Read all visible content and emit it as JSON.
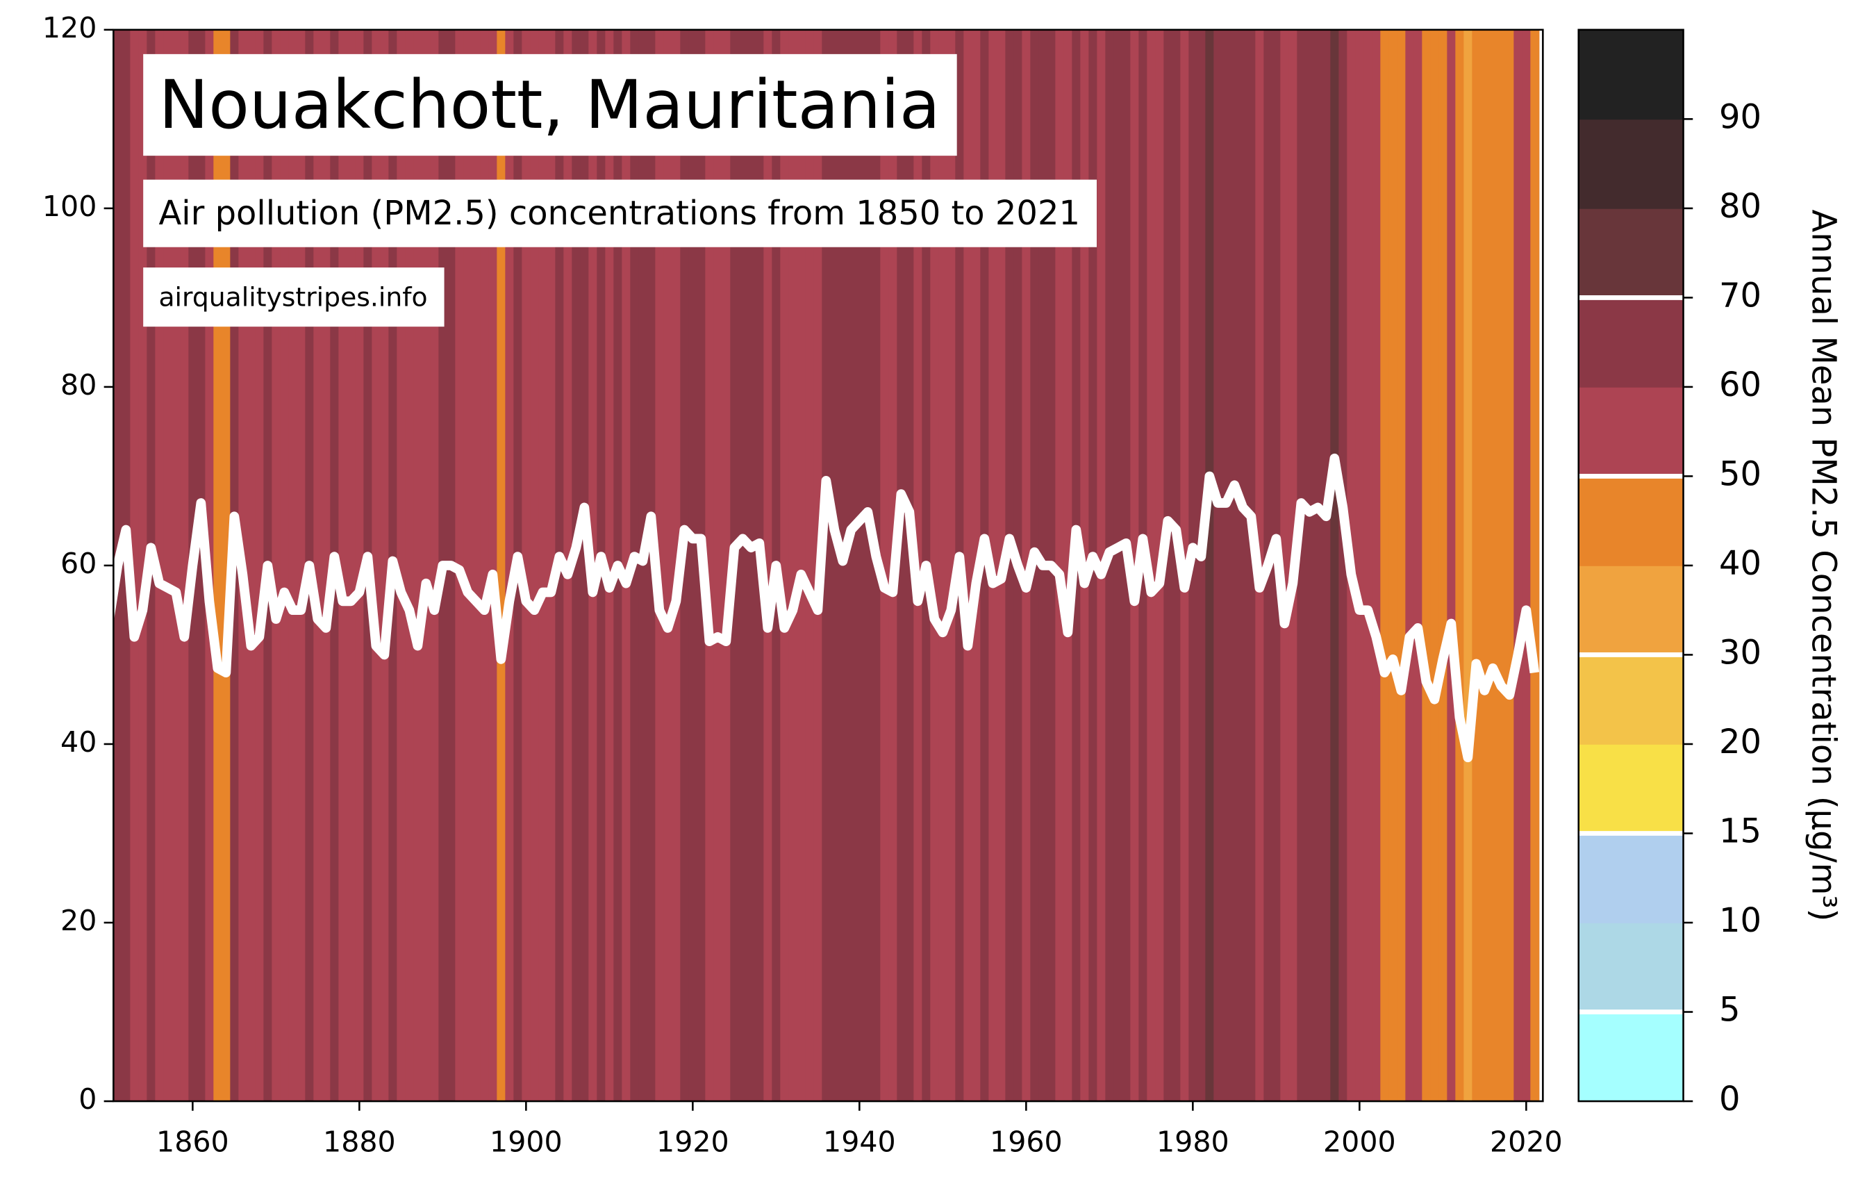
{
  "chart_data": {
    "type": "line",
    "title": "Nouakchott, Mauritania",
    "subtitle": "Air pollution (PM2.5) concentrations from 1850 to 2021",
    "source": "airqualitystripes.info",
    "x": [
      1850,
      1851,
      1852,
      1853,
      1854,
      1855,
      1856,
      1857,
      1858,
      1859,
      1860,
      1861,
      1862,
      1863,
      1864,
      1865,
      1866,
      1867,
      1868,
      1869,
      1870,
      1871,
      1872,
      1873,
      1874,
      1875,
      1876,
      1877,
      1878,
      1879,
      1880,
      1881,
      1882,
      1883,
      1884,
      1885,
      1886,
      1887,
      1888,
      1889,
      1890,
      1891,
      1892,
      1893,
      1894,
      1895,
      1896,
      1897,
      1898,
      1899,
      1900,
      1901,
      1902,
      1903,
      1904,
      1905,
      1906,
      1907,
      1908,
      1909,
      1910,
      1911,
      1912,
      1913,
      1914,
      1915,
      1916,
      1917,
      1918,
      1919,
      1920,
      1921,
      1922,
      1923,
      1924,
      1925,
      1926,
      1927,
      1928,
      1929,
      1930,
      1931,
      1932,
      1933,
      1934,
      1935,
      1936,
      1937,
      1938,
      1939,
      1940,
      1941,
      1942,
      1943,
      1944,
      1945,
      1946,
      1947,
      1948,
      1949,
      1950,
      1951,
      1952,
      1953,
      1954,
      1955,
      1956,
      1957,
      1958,
      1959,
      1960,
      1961,
      1962,
      1963,
      1964,
      1965,
      1966,
      1967,
      1968,
      1969,
      1970,
      1971,
      1972,
      1973,
      1974,
      1975,
      1976,
      1977,
      1978,
      1979,
      1980,
      1981,
      1982,
      1983,
      1984,
      1985,
      1986,
      1987,
      1988,
      1989,
      1990,
      1991,
      1992,
      1993,
      1994,
      1995,
      1996,
      1997,
      1998,
      1999,
      2000,
      2001,
      2002,
      2003,
      2004,
      2005,
      2006,
      2007,
      2008,
      2009,
      2010,
      2011,
      2012,
      2013,
      2014,
      2015,
      2016,
      2017,
      2018,
      2019,
      2020,
      2021
    ],
    "series": [
      {
        "color": "#ffffff",
        "values": [
          54,
          60,
          64,
          52,
          55,
          62,
          58,
          57.5,
          57,
          52,
          60,
          67,
          56,
          48.5,
          48,
          65.5,
          59,
          51,
          52,
          60,
          54,
          57,
          55,
          55,
          60,
          54,
          53,
          61,
          56,
          56,
          57,
          61,
          51,
          50,
          60.5,
          57,
          55,
          51,
          58,
          55,
          60,
          60,
          59.5,
          57,
          56,
          55,
          59,
          49.5,
          56,
          61,
          56,
          55,
          57,
          57,
          61,
          59,
          62,
          66.5,
          57,
          61,
          57.5,
          60,
          58,
          61,
          60.5,
          65.5,
          55,
          53,
          56,
          64,
          63,
          63,
          51.5,
          52,
          51.5,
          62,
          63,
          62,
          62.5,
          53,
          60,
          53,
          55,
          59,
          57,
          55,
          69.5,
          64,
          60.5,
          64,
          65,
          66,
          61,
          57.5,
          57,
          68,
          66,
          56,
          60,
          54,
          52.5,
          55,
          61,
          51,
          58,
          63,
          58,
          58.5,
          63,
          60,
          57.5,
          61.5,
          60,
          60,
          59,
          52.5,
          64,
          58,
          61,
          59,
          61.5,
          62,
          62.5,
          56,
          63,
          57,
          58,
          65,
          64,
          57.5,
          62,
          61,
          70,
          67,
          67,
          69,
          66.5,
          65.5,
          57.5,
          60,
          63,
          53.5,
          58,
          67,
          66,
          66.5,
          65.5,
          72,
          66.5,
          59,
          55,
          55,
          52,
          48,
          49.5,
          46,
          52,
          53,
          47,
          45,
          49.5,
          53.5,
          43,
          38.5,
          49,
          46,
          48.5,
          46.5,
          45.5,
          50,
          55,
          48
        ]
      }
    ],
    "xlim": [
      1850.5,
      2022
    ],
    "ylim": [
      0,
      120
    ],
    "xticks": [
      1860,
      1880,
      1900,
      1920,
      1940,
      1960,
      1980,
      2000,
      2020
    ],
    "yticks": [
      0,
      20,
      40,
      60,
      80,
      100,
      120
    ],
    "colorbar": {
      "label": "Annual Mean PM2.5 Concentration (µg/m³)",
      "ticks": [
        0,
        5,
        10,
        15,
        20,
        30,
        40,
        50,
        60,
        70,
        80,
        90
      ],
      "colors": [
        "#a5ffff",
        "#add8e6",
        "#b0cfee",
        "#f8e047",
        "#f3c349",
        "#f0a33f",
        "#e8852a",
        "#ad4453",
        "#8b3846",
        "#68363a",
        "#432b2d",
        "#222222"
      ],
      "lines": [
        5,
        15,
        30,
        50,
        70
      ]
    }
  }
}
